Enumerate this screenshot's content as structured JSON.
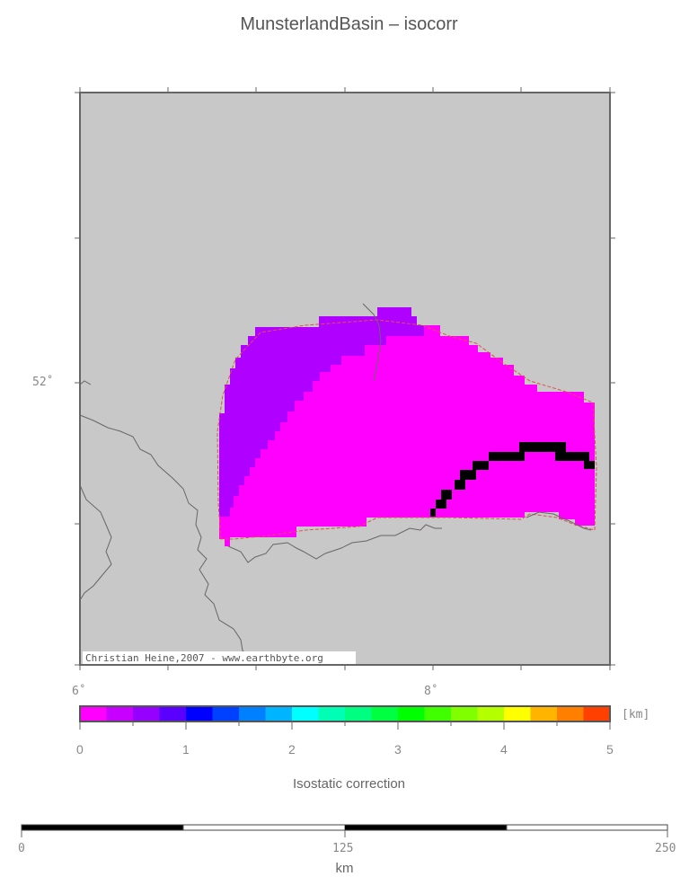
{
  "title": "MunsterlandBasin – isocorr",
  "map": {
    "lon_ticks": [
      {
        "label": "6˚",
        "value": 6
      },
      {
        "label": "8˚",
        "value": 8
      }
    ],
    "lat_ticks": [
      {
        "label": "52˚",
        "value": 52
      }
    ],
    "credit": "Christian Heine,2007 - www.earthbyte.org",
    "colors": {
      "background": "#c8c8c8",
      "frame": "#666666",
      "magenta": "#ff00ff",
      "purple": "#b000ff",
      "black": "#000000",
      "coast": "#666666",
      "boundary": "#e05050"
    }
  },
  "colorbar": {
    "unit": "[km]",
    "ticks": [
      "0",
      "1",
      "2",
      "3",
      "4",
      "5"
    ],
    "colors": [
      "#ff00ff",
      "#c800ff",
      "#9600ff",
      "#5a00ff",
      "#0000ff",
      "#0040ff",
      "#0080ff",
      "#00b4ff",
      "#00ffff",
      "#00ffb4",
      "#00ff80",
      "#00ff40",
      "#00ff00",
      "#40ff00",
      "#80ff00",
      "#b4ff00",
      "#ffff00",
      "#ffb400",
      "#ff8000",
      "#ff4000"
    ],
    "caption": "Isostatic correction"
  },
  "scalebar": {
    "ticks": [
      "0",
      "125",
      "250"
    ],
    "unit": "km"
  }
}
